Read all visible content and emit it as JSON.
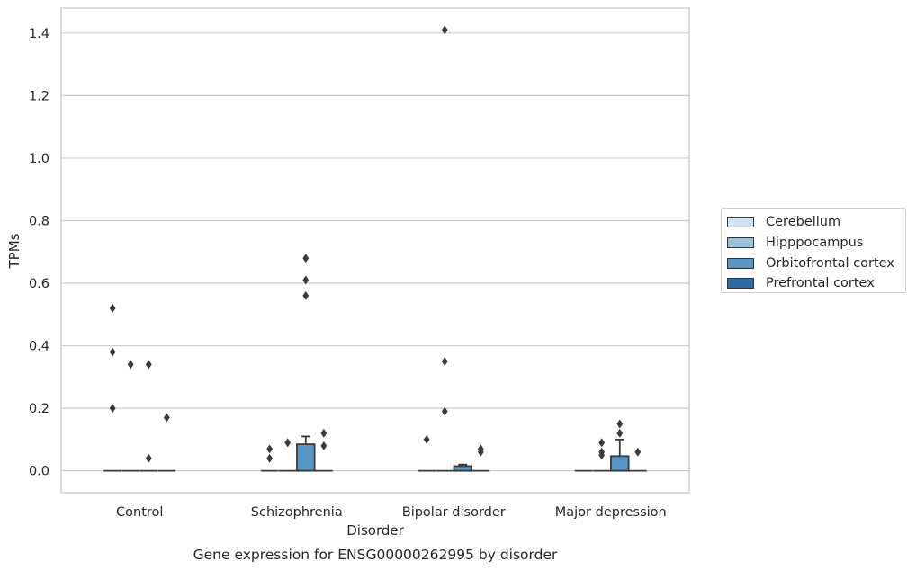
{
  "chart_data": {
    "type": "box",
    "title": "Gene expression for ENSG00000262995 by disorder",
    "xlabel": "Disorder",
    "ylabel": "TPMs",
    "ylim": [
      -0.07,
      1.48
    ],
    "yticks": [
      0.0,
      0.2,
      0.4,
      0.6,
      0.8,
      1.0,
      1.2,
      1.4
    ],
    "ytick_labels": [
      "0.0",
      "0.2",
      "0.4",
      "0.6",
      "0.8",
      "1.0",
      "1.2",
      "1.4"
    ],
    "grid": "horizontal",
    "legend_position": "outside-right",
    "categories": [
      "Control",
      "Schizophrenia",
      "Bipolar disorder",
      "Major depression"
    ],
    "series": [
      {
        "name": "Cerebellum",
        "color": "#d0e1f2",
        "boxes": [
          {
            "q1": 0,
            "median": 0,
            "q3": 0,
            "whisker_low": 0,
            "whisker_high": 0,
            "outliers": [
              0.2,
              0.38,
              0.52
            ]
          },
          {
            "q1": 0,
            "median": 0,
            "q3": 0,
            "whisker_low": 0,
            "whisker_high": 0,
            "outliers": [
              0.04,
              0.07
            ]
          },
          {
            "q1": 0,
            "median": 0,
            "q3": 0,
            "whisker_low": 0,
            "whisker_high": 0,
            "outliers": [
              0.1
            ]
          },
          {
            "q1": 0,
            "median": 0,
            "q3": 0,
            "whisker_low": 0,
            "whisker_high": 0,
            "outliers": []
          }
        ]
      },
      {
        "name": "Hipppocampus",
        "color": "#9cc3e0",
        "boxes": [
          {
            "q1": 0,
            "median": 0,
            "q3": 0,
            "whisker_low": 0,
            "whisker_high": 0,
            "outliers": [
              0.34
            ]
          },
          {
            "q1": 0,
            "median": 0,
            "q3": 0,
            "whisker_low": 0,
            "whisker_high": 0,
            "outliers": [
              0.09
            ]
          },
          {
            "q1": 0,
            "median": 0,
            "q3": 0,
            "whisker_low": 0,
            "whisker_high": 0,
            "outliers": [
              0.19,
              0.35,
              1.41
            ]
          },
          {
            "q1": 0,
            "median": 0,
            "q3": 0,
            "whisker_low": 0,
            "whisker_high": 0,
            "outliers": [
              0.05,
              0.06,
              0.09
            ]
          }
        ]
      },
      {
        "name": "Orbitofrontal cortex",
        "color": "#5696c6",
        "boxes": [
          {
            "q1": 0,
            "median": 0,
            "q3": 0,
            "whisker_low": 0,
            "whisker_high": 0,
            "outliers": [
              0.04,
              0.34
            ]
          },
          {
            "q1": 0,
            "median": 0,
            "q3": 0.085,
            "whisker_low": 0,
            "whisker_high": 0.11,
            "outliers": [
              0.56,
              0.61,
              0.68
            ]
          },
          {
            "q1": 0,
            "median": 0,
            "q3": 0.015,
            "whisker_low": 0,
            "whisker_high": 0.02,
            "outliers": []
          },
          {
            "q1": 0,
            "median": 0,
            "q3": 0.047,
            "whisker_low": 0,
            "whisker_high": 0.1,
            "outliers": [
              0.12,
              0.15
            ]
          }
        ]
      },
      {
        "name": "Prefrontal cortex",
        "color": "#2a6ba9",
        "boxes": [
          {
            "q1": 0,
            "median": 0,
            "q3": 0,
            "whisker_low": 0,
            "whisker_high": 0,
            "outliers": [
              0.17
            ]
          },
          {
            "q1": 0,
            "median": 0,
            "q3": 0,
            "whisker_low": 0,
            "whisker_high": 0,
            "outliers": [
              0.08,
              0.12
            ]
          },
          {
            "q1": 0,
            "median": 0,
            "q3": 0,
            "whisker_low": 0,
            "whisker_high": 0,
            "outliers": [
              0.06,
              0.07
            ]
          },
          {
            "q1": 0,
            "median": 0,
            "q3": 0,
            "whisker_low": 0,
            "whisker_high": 0,
            "outliers": [
              0.06
            ]
          }
        ]
      }
    ]
  }
}
